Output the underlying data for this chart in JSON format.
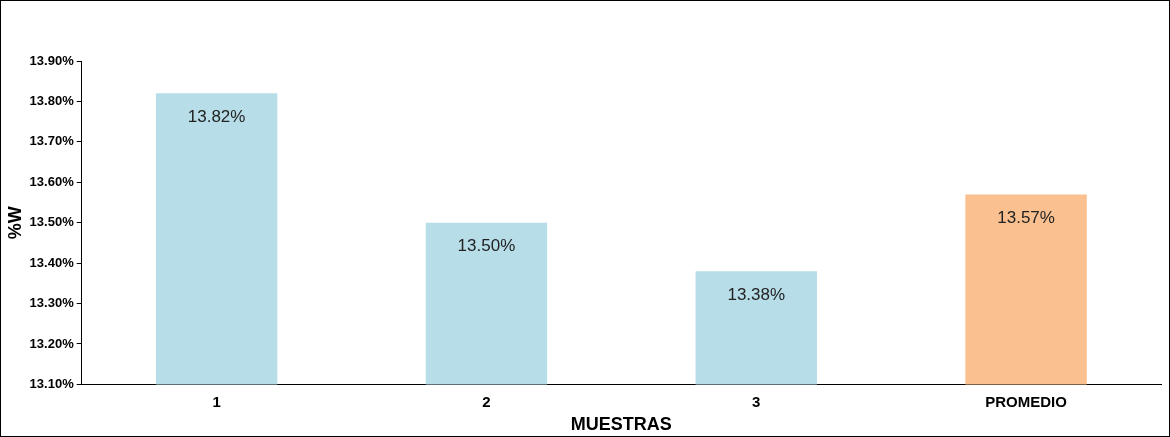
{
  "chart_data": {
    "type": "bar",
    "xlabel": "MUESTRAS",
    "ylabel": "%W",
    "categories": [
      "1",
      "2",
      "3",
      "PROMEDIO"
    ],
    "values": [
      13.82,
      13.5,
      13.38,
      13.57
    ],
    "colors": [
      "#b7dde8",
      "#b7dde8",
      "#b7dde8",
      "#fac090"
    ],
    "value_labels": [
      "13.82%",
      "13.50%",
      "13.38%",
      "13.57%"
    ],
    "ylim": [
      13.1,
      13.9
    ],
    "yticks": [
      {
        "value": 13.1,
        "label": "13.10%"
      },
      {
        "value": 13.2,
        "label": "13.20%"
      },
      {
        "value": 13.3,
        "label": "13.30%"
      },
      {
        "value": 13.4,
        "label": "13.40%"
      },
      {
        "value": 13.5,
        "label": "13.50%"
      },
      {
        "value": 13.6,
        "label": "13.60%"
      },
      {
        "value": 13.7,
        "label": "13.70%"
      },
      {
        "value": 13.8,
        "label": "13.80%"
      },
      {
        "value": 13.9,
        "label": "13.90%"
      }
    ],
    "grid": false,
    "legend": false
  }
}
